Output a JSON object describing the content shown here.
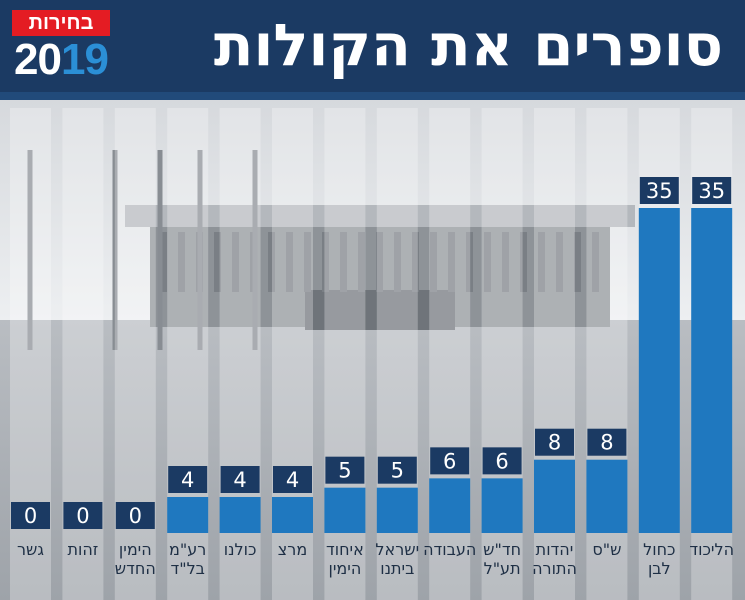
{
  "header": {
    "title": "סופרים את הקולות",
    "logo_label": "בחירות",
    "logo_year_a": "20",
    "logo_year_b": "19"
  },
  "colors": {
    "header": "#1b3a63",
    "bar": "#1f78bf",
    "label_box": "#1b3a63",
    "logo_red": "#e41c23",
    "logo_accent": "#2b8fd6"
  },
  "chart_data": {
    "type": "bar",
    "title": "סופרים את הקולות",
    "xlabel": "",
    "ylabel": "",
    "ylim": [
      0,
      35
    ],
    "grid": false,
    "legend": "none",
    "categories": [
      [
        "גשר"
      ],
      [
        "זהות"
      ],
      [
        "הימין",
        "החדש"
      ],
      [
        "רע\"מ",
        "בל\"ד"
      ],
      [
        "כולנו"
      ],
      [
        "מרצ"
      ],
      [
        "איחוד",
        "הימין"
      ],
      [
        "ישראל",
        "ביתנו"
      ],
      [
        "העבודה"
      ],
      [
        "חד\"ש",
        "תע\"ל"
      ],
      [
        "יהדות",
        "התורה"
      ],
      [
        "ש\"ס"
      ],
      [
        "כחול",
        "לבן"
      ],
      [
        "הליכוד"
      ]
    ],
    "values": [
      0,
      0,
      0,
      4,
      4,
      4,
      5,
      5,
      6,
      6,
      8,
      8,
      35,
      35
    ]
  }
}
